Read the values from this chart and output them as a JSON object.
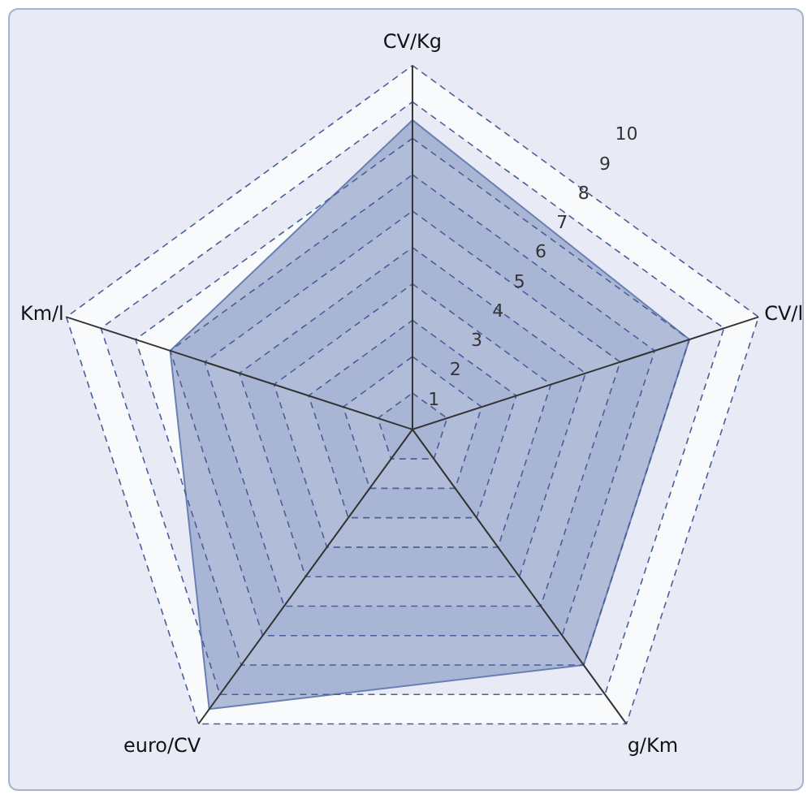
{
  "chart_data": {
    "type": "radar",
    "categories": [
      "CV/Kg",
      "CV/l",
      "g/Km",
      "euro/CV",
      "Km/l"
    ],
    "series": [
      {
        "color": "#6a80b4",
        "values": [
          8.5,
          8.0,
          8.0,
          9.5,
          7.0
        ]
      }
    ],
    "ylim": [
      0,
      10
    ],
    "yticks": [
      1,
      2,
      3,
      4,
      5,
      6,
      7,
      8,
      9,
      10
    ],
    "grid": true
  }
}
